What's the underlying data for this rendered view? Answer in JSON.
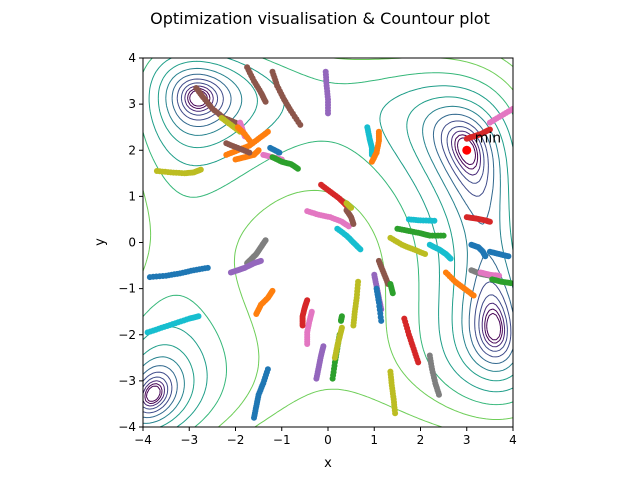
{
  "chart_data": {
    "type": "scatter",
    "title": "Optimization visualisation & Countour plot",
    "xlabel": "x",
    "ylabel": "y",
    "xlim": [
      -4,
      4
    ],
    "ylim": [
      -4,
      4
    ],
    "xticks": [
      "−4",
      "−3",
      "−2",
      "−1",
      "0",
      "1",
      "2",
      "3",
      "4"
    ],
    "yticks": [
      "−4",
      "−3",
      "−2",
      "−1",
      "0",
      "1",
      "2",
      "3",
      "4"
    ],
    "xtick_values": [
      -4,
      -3,
      -2,
      -1,
      0,
      1,
      2,
      3,
      4
    ],
    "ytick_values": [
      -4,
      -3,
      -2,
      -1,
      0,
      1,
      2,
      3,
      4
    ],
    "grid": false,
    "background": "contour plot of the objective (viridis colormap, low values dark purple, high values yellow)",
    "minimum": {
      "label": "min",
      "x": 3.0,
      "y": 2.0,
      "color": "#ff0000"
    },
    "colors": [
      "#1f77b4",
      "#ff7f0e",
      "#2ca02c",
      "#d62728",
      "#9467bd",
      "#8c564b",
      "#e377c2",
      "#7f7f7f",
      "#bcbd22",
      "#17becf"
    ],
    "paths": [
      {
        "color": "#1f77b4",
        "points": [
          [
            -3.85,
            -0.75
          ],
          [
            -3.5,
            -0.72
          ],
          [
            -3.2,
            -0.67
          ],
          [
            -2.9,
            -0.6
          ],
          [
            -2.6,
            -0.55
          ]
        ]
      },
      {
        "color": "#17becf",
        "points": [
          [
            -3.9,
            -1.95
          ],
          [
            -3.6,
            -1.85
          ],
          [
            -3.3,
            -1.75
          ],
          [
            -3.0,
            -1.65
          ],
          [
            -2.8,
            -1.6
          ]
        ]
      },
      {
        "color": "#bcbd22",
        "points": [
          [
            -3.7,
            1.55
          ],
          [
            -3.4,
            1.52
          ],
          [
            -3.1,
            1.5
          ],
          [
            -2.9,
            1.52
          ],
          [
            -2.75,
            1.58
          ]
        ]
      },
      {
        "color": "#8c564b",
        "points": [
          [
            -2.85,
            3.35
          ],
          [
            -2.7,
            3.15
          ],
          [
            -2.5,
            2.9
          ],
          [
            -2.25,
            2.7
          ],
          [
            -2.0,
            2.6
          ]
        ]
      },
      {
        "color": "#bcbd22",
        "points": [
          [
            -2.3,
            2.7
          ],
          [
            -2.1,
            2.55
          ],
          [
            -1.9,
            2.4
          ]
        ]
      },
      {
        "color": "#e377c2",
        "points": [
          [
            -1.9,
            2.6
          ],
          [
            -1.85,
            2.45
          ],
          [
            -1.8,
            2.3
          ]
        ]
      },
      {
        "color": "#8c564b",
        "points": [
          [
            -1.75,
            3.8
          ],
          [
            -1.6,
            3.5
          ],
          [
            -1.45,
            3.25
          ],
          [
            -1.35,
            3.05
          ]
        ]
      },
      {
        "color": "#8c564b",
        "points": [
          [
            -1.2,
            3.7
          ],
          [
            -1.1,
            3.4
          ],
          [
            -0.95,
            3.1
          ],
          [
            -0.8,
            2.85
          ],
          [
            -0.6,
            2.55
          ]
        ]
      },
      {
        "color": "#9467bd",
        "points": [
          [
            -0.05,
            3.7
          ],
          [
            -0.03,
            3.4
          ],
          [
            0.0,
            3.1
          ],
          [
            0.0,
            2.8
          ]
        ]
      },
      {
        "color": "#ff7f0e",
        "points": [
          [
            -1.95,
            2.5
          ],
          [
            -1.8,
            2.35
          ],
          [
            -1.65,
            2.15
          ]
        ]
      },
      {
        "color": "#ff7f0e",
        "points": [
          [
            -2.2,
            1.9
          ],
          [
            -1.95,
            2.0
          ],
          [
            -1.7,
            2.1
          ],
          [
            -1.5,
            2.25
          ],
          [
            -1.3,
            2.4
          ]
        ]
      },
      {
        "color": "#ff7f0e",
        "points": [
          [
            -2.0,
            1.8
          ],
          [
            -1.8,
            1.85
          ],
          [
            -1.6,
            1.9
          ],
          [
            -1.5,
            2.0
          ]
        ]
      },
      {
        "color": "#8c564b",
        "points": [
          [
            -2.2,
            2.15
          ],
          [
            -1.95,
            2.05
          ],
          [
            -1.7,
            1.95
          ]
        ]
      },
      {
        "color": "#e377c2",
        "points": [
          [
            -1.4,
            1.9
          ],
          [
            -1.2,
            1.85
          ],
          [
            -1.0,
            1.8
          ]
        ]
      },
      {
        "color": "#2ca02c",
        "points": [
          [
            -1.2,
            1.85
          ],
          [
            -1.0,
            1.75
          ],
          [
            -0.8,
            1.7
          ],
          [
            -0.65,
            1.6
          ]
        ]
      },
      {
        "color": "#1f77b4",
        "points": [
          [
            -1.25,
            2.05
          ],
          [
            -1.05,
            1.95
          ]
        ]
      },
      {
        "color": "#17becf",
        "points": [
          [
            0.85,
            2.5
          ],
          [
            0.9,
            2.25
          ],
          [
            0.95,
            2.05
          ],
          [
            0.95,
            1.9
          ]
        ]
      },
      {
        "color": "#ff7f0e",
        "points": [
          [
            0.95,
            1.75
          ],
          [
            1.05,
            1.95
          ],
          [
            1.1,
            2.2
          ],
          [
            1.1,
            2.4
          ]
        ]
      },
      {
        "color": "#d62728",
        "points": [
          [
            3.0,
            2.25
          ],
          [
            3.15,
            2.3
          ],
          [
            3.3,
            2.35
          ],
          [
            3.5,
            2.45
          ]
        ]
      },
      {
        "color": "#e377c2",
        "points": [
          [
            3.5,
            2.6
          ],
          [
            3.75,
            2.75
          ],
          [
            4.0,
            2.9
          ]
        ]
      },
      {
        "color": "#d62728",
        "points": [
          [
            -0.15,
            1.25
          ],
          [
            0.05,
            1.1
          ],
          [
            0.25,
            0.95
          ],
          [
            0.4,
            0.8
          ]
        ]
      },
      {
        "color": "#e377c2",
        "points": [
          [
            -0.45,
            0.68
          ],
          [
            -0.2,
            0.6
          ],
          [
            0.05,
            0.55
          ],
          [
            0.3,
            0.45
          ],
          [
            0.45,
            0.35
          ]
        ]
      },
      {
        "color": "#17becf",
        "points": [
          [
            0.2,
            0.3
          ],
          [
            0.4,
            0.15
          ],
          [
            0.55,
            0.0
          ],
          [
            0.7,
            -0.15
          ]
        ]
      },
      {
        "color": "#8c564b",
        "points": [
          [
            0.4,
            0.7
          ],
          [
            0.5,
            0.55
          ],
          [
            0.55,
            0.4
          ]
        ]
      },
      {
        "color": "#bcbd22",
        "points": [
          [
            0.4,
            0.85
          ],
          [
            0.5,
            0.75
          ]
        ]
      },
      {
        "color": "#2ca02c",
        "points": [
          [
            1.5,
            0.3
          ],
          [
            1.75,
            0.25
          ],
          [
            2.0,
            0.2
          ],
          [
            2.2,
            0.15
          ],
          [
            2.5,
            0.15
          ]
        ]
      },
      {
        "color": "#17becf",
        "points": [
          [
            1.75,
            0.5
          ],
          [
            2.0,
            0.48
          ],
          [
            2.3,
            0.47
          ]
        ]
      },
      {
        "color": "#bcbd22",
        "points": [
          [
            1.35,
            0.1
          ],
          [
            1.6,
            -0.05
          ],
          [
            1.85,
            -0.15
          ],
          [
            2.1,
            -0.25
          ]
        ]
      },
      {
        "color": "#17becf",
        "points": [
          [
            2.2,
            -0.05
          ],
          [
            2.4,
            -0.15
          ],
          [
            2.55,
            -0.25
          ],
          [
            2.65,
            -0.35
          ]
        ]
      },
      {
        "color": "#d62728",
        "points": [
          [
            3.0,
            0.55
          ],
          [
            3.2,
            0.52
          ],
          [
            3.4,
            0.48
          ],
          [
            3.5,
            0.45
          ]
        ]
      },
      {
        "color": "#1f77b4",
        "points": [
          [
            3.1,
            -0.05
          ],
          [
            3.25,
            -0.1
          ],
          [
            3.35,
            -0.2
          ],
          [
            3.4,
            -0.3
          ]
        ]
      },
      {
        "color": "#7f7f7f",
        "points": [
          [
            3.1,
            -0.6
          ],
          [
            3.3,
            -0.68
          ],
          [
            3.5,
            -0.72
          ]
        ]
      },
      {
        "color": "#e377c2",
        "points": [
          [
            3.3,
            -0.65
          ],
          [
            3.5,
            -0.7
          ],
          [
            3.7,
            -0.72
          ]
        ]
      },
      {
        "color": "#1f77b4",
        "points": [
          [
            3.5,
            -0.2
          ],
          [
            3.7,
            -0.25
          ],
          [
            3.9,
            -0.3
          ]
        ]
      },
      {
        "color": "#2ca02c",
        "points": [
          [
            3.55,
            -0.8
          ],
          [
            3.75,
            -0.85
          ],
          [
            3.95,
            -0.88
          ]
        ]
      },
      {
        "color": "#ff7f0e",
        "points": [
          [
            2.55,
            -0.65
          ],
          [
            2.75,
            -0.85
          ],
          [
            2.95,
            -1.0
          ],
          [
            3.15,
            -1.15
          ]
        ]
      },
      {
        "color": "#7f7f7f",
        "points": [
          [
            -1.75,
            -0.45
          ],
          [
            -1.65,
            -0.35
          ],
          [
            -1.55,
            -0.25
          ],
          [
            -1.45,
            -0.1
          ],
          [
            -1.35,
            0.05
          ]
        ]
      },
      {
        "color": "#9467bd",
        "points": [
          [
            -2.1,
            -0.65
          ],
          [
            -1.95,
            -0.6
          ],
          [
            -1.8,
            -0.55
          ],
          [
            -1.6,
            -0.45
          ],
          [
            -1.45,
            -0.4
          ]
        ]
      },
      {
        "color": "#ff7f0e",
        "points": [
          [
            -1.55,
            -1.55
          ],
          [
            -1.45,
            -1.35
          ],
          [
            -1.3,
            -1.2
          ],
          [
            -1.2,
            -1.05
          ]
        ]
      },
      {
        "color": "#d62728",
        "points": [
          [
            -0.55,
            -1.8
          ],
          [
            -0.55,
            -1.6
          ],
          [
            -0.5,
            -1.4
          ],
          [
            -0.45,
            -1.25
          ]
        ]
      },
      {
        "color": "#e377c2",
        "points": [
          [
            -0.45,
            -2.2
          ],
          [
            -0.45,
            -1.95
          ],
          [
            -0.4,
            -1.7
          ],
          [
            -0.35,
            -1.5
          ]
        ]
      },
      {
        "color": "#9467bd",
        "points": [
          [
            -0.25,
            -2.95
          ],
          [
            -0.2,
            -2.7
          ],
          [
            -0.15,
            -2.45
          ],
          [
            -0.1,
            -2.25
          ]
        ]
      },
      {
        "color": "#2ca02c",
        "points": [
          [
            0.1,
            -2.95
          ],
          [
            0.15,
            -2.6
          ],
          [
            0.2,
            -2.3
          ],
          [
            0.25,
            -2.0
          ]
        ]
      },
      {
        "color": "#bcbd22",
        "points": [
          [
            0.15,
            -2.5
          ],
          [
            0.2,
            -2.25
          ],
          [
            0.25,
            -2.05
          ],
          [
            0.3,
            -1.85
          ]
        ]
      },
      {
        "color": "#bcbd22",
        "points": [
          [
            0.55,
            -1.8
          ],
          [
            0.58,
            -1.5
          ],
          [
            0.62,
            -1.2
          ],
          [
            0.65,
            -0.85
          ]
        ]
      },
      {
        "color": "#2ca02c",
        "points": [
          [
            0.28,
            -1.7
          ],
          [
            0.3,
            -1.6
          ]
        ]
      },
      {
        "color": "#9467bd",
        "points": [
          [
            1.0,
            -0.7
          ],
          [
            1.05,
            -0.95
          ],
          [
            1.1,
            -1.2
          ],
          [
            1.15,
            -1.45
          ]
        ]
      },
      {
        "color": "#1f77b4",
        "points": [
          [
            1.05,
            -1.0
          ],
          [
            1.1,
            -1.3
          ],
          [
            1.15,
            -1.7
          ]
        ]
      },
      {
        "color": "#8c564b",
        "points": [
          [
            1.1,
            -0.4
          ],
          [
            1.2,
            -0.65
          ],
          [
            1.3,
            -0.9
          ]
        ]
      },
      {
        "color": "#2ca02c",
        "points": [
          [
            1.35,
            -0.9
          ],
          [
            1.4,
            -1.1
          ]
        ]
      },
      {
        "color": "#d62728",
        "points": [
          [
            1.65,
            -1.65
          ],
          [
            1.75,
            -2.0
          ],
          [
            1.85,
            -2.3
          ],
          [
            1.95,
            -2.6
          ]
        ]
      },
      {
        "color": "#7f7f7f",
        "points": [
          [
            2.2,
            -2.45
          ],
          [
            2.25,
            -2.75
          ],
          [
            2.32,
            -3.05
          ],
          [
            2.4,
            -3.3
          ]
        ]
      },
      {
        "color": "#bcbd22",
        "points": [
          [
            1.35,
            -2.8
          ],
          [
            1.38,
            -3.1
          ],
          [
            1.42,
            -3.4
          ],
          [
            1.45,
            -3.7
          ]
        ]
      },
      {
        "color": "#1f77b4",
        "points": [
          [
            -1.6,
            -3.8
          ],
          [
            -1.55,
            -3.55
          ],
          [
            -1.5,
            -3.3
          ],
          [
            -1.4,
            -3.05
          ],
          [
            -1.3,
            -2.75
          ]
        ]
      }
    ]
  }
}
